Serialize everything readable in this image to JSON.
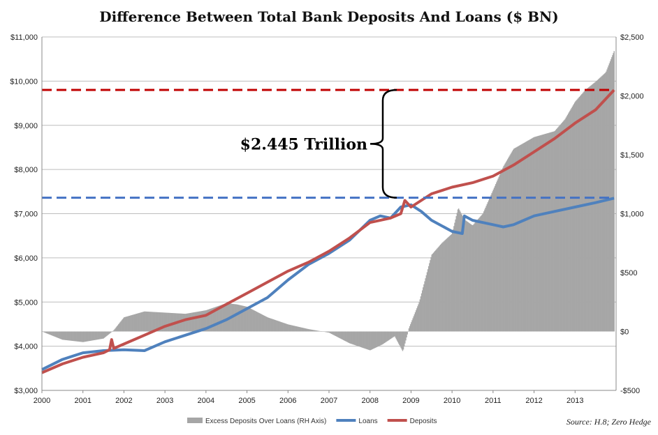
{
  "chart_data": {
    "type": "line",
    "title": "Difference Between Total Bank Deposits And Loans ($ BN)",
    "x_axis": {
      "ticks": [
        "2000",
        "2001",
        "2002",
        "2003",
        "2004",
        "2005",
        "2006",
        "2007",
        "2008",
        "2009",
        "2010",
        "2011",
        "2012",
        "2013"
      ],
      "range": [
        2000,
        2014
      ]
    },
    "y_left": {
      "range": [
        3000,
        11000
      ],
      "ticks": [
        3000,
        4000,
        5000,
        6000,
        7000,
        8000,
        9000,
        10000,
        11000
      ],
      "tick_labels": [
        "$3,000",
        "$4,000",
        "$5,000",
        "$6,000",
        "$7,000",
        "$8,000",
        "$9,000",
        "$10,000",
        "$11,000"
      ]
    },
    "y_right": {
      "range": [
        -500,
        2500
      ],
      "ticks": [
        -500,
        0,
        500,
        1000,
        1500,
        2000,
        2500
      ],
      "tick_labels": [
        "-$500",
        "$0",
        "$500",
        "$1,000",
        "$1,500",
        "$2,000",
        "$2,500"
      ]
    },
    "grid": true,
    "legend_position": "bottom",
    "series": [
      {
        "name": "Excess Deposits Over Loans (RH Axis)",
        "kind": "bar",
        "axis": "right",
        "color": "#a6a6a6",
        "points": [
          [
            2000.0,
            0
          ],
          [
            2000.5,
            -70
          ],
          [
            2001.0,
            -90
          ],
          [
            2001.5,
            -60
          ],
          [
            2001.75,
            10
          ],
          [
            2002.0,
            120
          ],
          [
            2002.5,
            170
          ],
          [
            2003.0,
            160
          ],
          [
            2003.5,
            150
          ],
          [
            2004.0,
            180
          ],
          [
            2004.5,
            240
          ],
          [
            2004.75,
            230
          ],
          [
            2005.0,
            210
          ],
          [
            2005.5,
            120
          ],
          [
            2006.0,
            60
          ],
          [
            2006.5,
            20
          ],
          [
            2007.0,
            -10
          ],
          [
            2007.5,
            -100
          ],
          [
            2008.0,
            -160
          ],
          [
            2008.3,
            -110
          ],
          [
            2008.6,
            -40
          ],
          [
            2008.8,
            -170
          ],
          [
            2008.95,
            30
          ],
          [
            2009.2,
            250
          ],
          [
            2009.5,
            650
          ],
          [
            2009.75,
            750
          ],
          [
            2010.0,
            830
          ],
          [
            2010.15,
            1050
          ],
          [
            2010.3,
            950
          ],
          [
            2010.5,
            900
          ],
          [
            2010.75,
            1000
          ],
          [
            2011.0,
            1200
          ],
          [
            2011.25,
            1400
          ],
          [
            2011.5,
            1550
          ],
          [
            2011.75,
            1600
          ],
          [
            2012.0,
            1650
          ],
          [
            2012.5,
            1700
          ],
          [
            2012.75,
            1800
          ],
          [
            2013.0,
            1950
          ],
          [
            2013.25,
            2050
          ],
          [
            2013.5,
            2120
          ],
          [
            2013.75,
            2200
          ],
          [
            2013.95,
            2380
          ]
        ]
      },
      {
        "name": "Loans",
        "kind": "line",
        "axis": "left",
        "color": "#4f81bd",
        "points": [
          [
            2000.0,
            3470
          ],
          [
            2000.5,
            3700
          ],
          [
            2001.0,
            3850
          ],
          [
            2001.5,
            3900
          ],
          [
            2002.0,
            3920
          ],
          [
            2002.5,
            3900
          ],
          [
            2003.0,
            4100
          ],
          [
            2003.5,
            4250
          ],
          [
            2004.0,
            4400
          ],
          [
            2004.5,
            4600
          ],
          [
            2005.0,
            4850
          ],
          [
            2005.5,
            5100
          ],
          [
            2006.0,
            5500
          ],
          [
            2006.5,
            5850
          ],
          [
            2007.0,
            6100
          ],
          [
            2007.5,
            6400
          ],
          [
            2008.0,
            6850
          ],
          [
            2008.25,
            6950
          ],
          [
            2008.5,
            6900
          ],
          [
            2008.75,
            7150
          ],
          [
            2009.0,
            7200
          ],
          [
            2009.25,
            7050
          ],
          [
            2009.5,
            6850
          ],
          [
            2010.0,
            6600
          ],
          [
            2010.25,
            6550
          ],
          [
            2010.3,
            6950
          ],
          [
            2010.5,
            6850
          ],
          [
            2010.75,
            6800
          ],
          [
            2011.0,
            6750
          ],
          [
            2011.25,
            6700
          ],
          [
            2011.5,
            6750
          ],
          [
            2011.75,
            6850
          ],
          [
            2012.0,
            6950
          ],
          [
            2012.5,
            7050
          ],
          [
            2013.0,
            7150
          ],
          [
            2013.5,
            7250
          ],
          [
            2013.95,
            7350
          ]
        ]
      },
      {
        "name": "Deposits",
        "kind": "line",
        "axis": "left",
        "color": "#c0504d",
        "points": [
          [
            2000.0,
            3400
          ],
          [
            2000.5,
            3600
          ],
          [
            2001.0,
            3750
          ],
          [
            2001.5,
            3850
          ],
          [
            2001.65,
            3920
          ],
          [
            2001.7,
            4150
          ],
          [
            2001.75,
            3950
          ],
          [
            2002.0,
            4050
          ],
          [
            2002.5,
            4250
          ],
          [
            2003.0,
            4450
          ],
          [
            2003.5,
            4600
          ],
          [
            2004.0,
            4700
          ],
          [
            2004.5,
            4950
          ],
          [
            2005.0,
            5200
          ],
          [
            2005.5,
            5450
          ],
          [
            2006.0,
            5700
          ],
          [
            2006.5,
            5900
          ],
          [
            2007.0,
            6150
          ],
          [
            2007.5,
            6450
          ],
          [
            2008.0,
            6800
          ],
          [
            2008.5,
            6900
          ],
          [
            2008.75,
            7000
          ],
          [
            2008.85,
            7300
          ],
          [
            2009.0,
            7150
          ],
          [
            2009.25,
            7300
          ],
          [
            2009.5,
            7450
          ],
          [
            2010.0,
            7600
          ],
          [
            2010.5,
            7700
          ],
          [
            2011.0,
            7850
          ],
          [
            2011.5,
            8100
          ],
          [
            2012.0,
            8400
          ],
          [
            2012.5,
            8700
          ],
          [
            2013.0,
            9050
          ],
          [
            2013.5,
            9350
          ],
          [
            2013.95,
            9800
          ]
        ]
      }
    ],
    "reference_lines": [
      {
        "axis": "left",
        "y": 9800,
        "color": "#c00000",
        "style": "dashed"
      },
      {
        "axis": "left",
        "y": 7360,
        "color": "#4472c4",
        "style": "dashed"
      }
    ],
    "annotation": {
      "text": "$2.445 Trillion",
      "from_y": 9800,
      "to_y": 7360
    },
    "source": "Source: H.8; Zero Hedge"
  }
}
